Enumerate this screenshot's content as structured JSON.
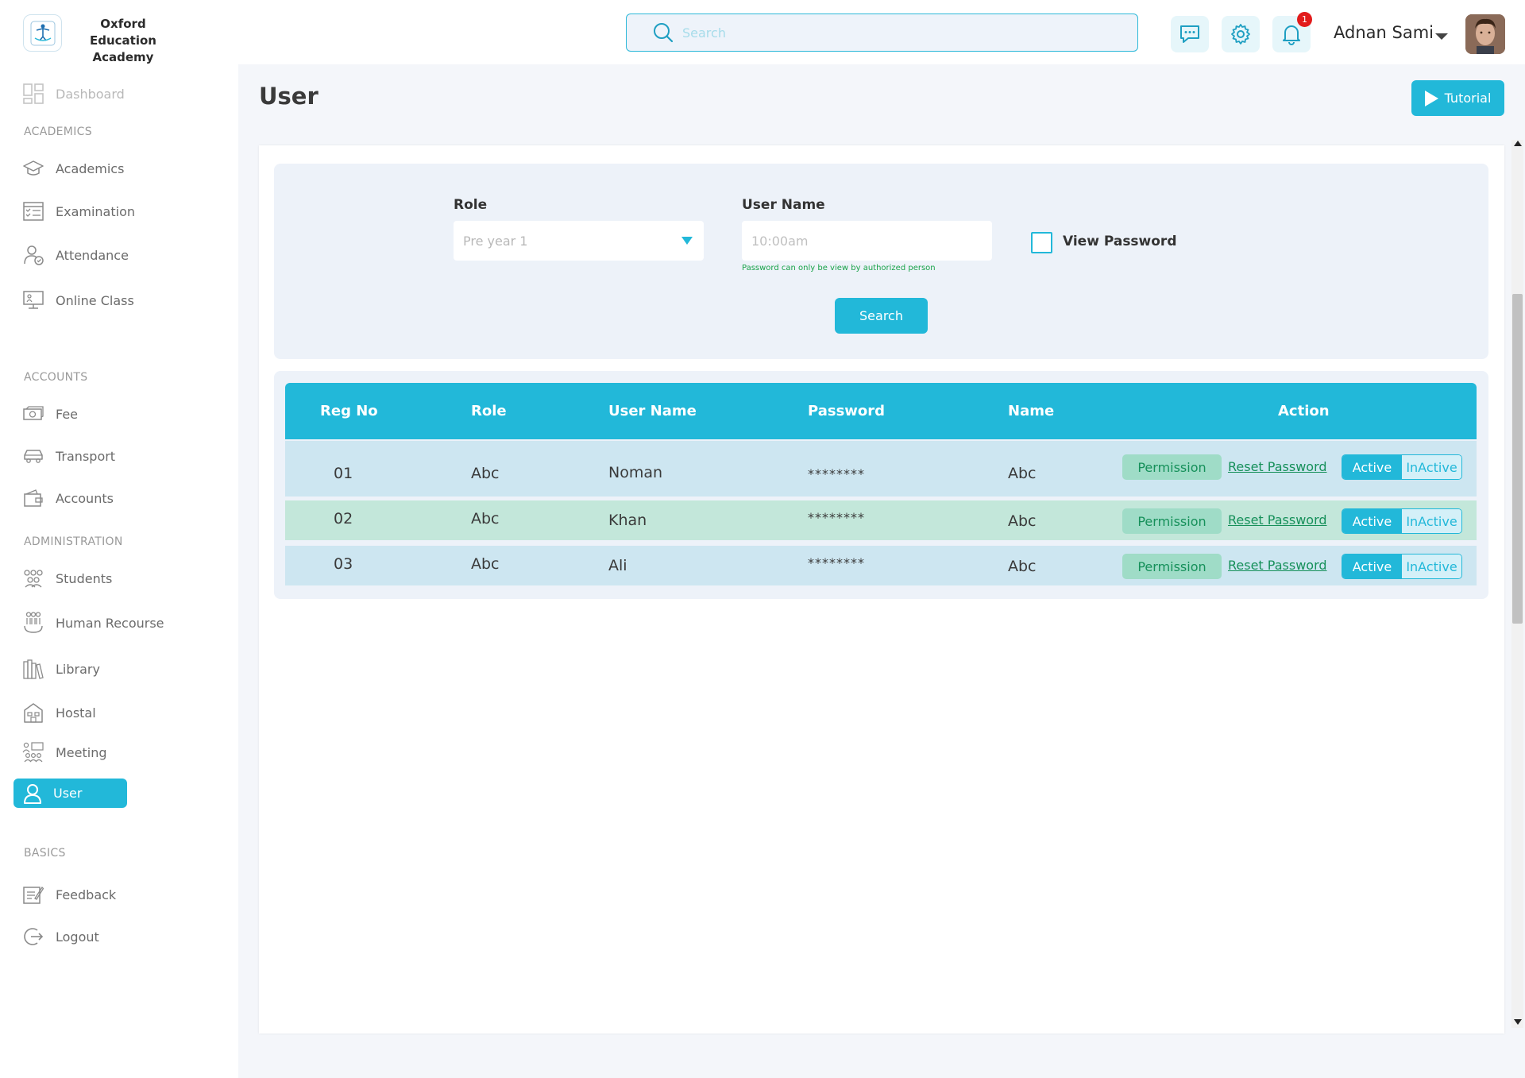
{
  "brand": {
    "name": "Oxford Education Academy"
  },
  "header": {
    "search_placeholder": "Search",
    "notification_count": "1",
    "user_name": "Adnan Sami",
    "icons": [
      "chat-icon",
      "gear-icon",
      "bell-icon"
    ]
  },
  "sidebar": {
    "dashboard": "Dashboard",
    "sections": {
      "academics": "ACADEMICS",
      "accounts": "ACCOUNTS",
      "administration": "ADMINISTRATION",
      "basics": "BASICS"
    },
    "items": {
      "academics": "Academics",
      "examination": "Examination",
      "attendance": "Attendance",
      "online_class": "Online Class",
      "fee": "Fee",
      "transport": "Transport",
      "accounts": "Accounts",
      "students": "Students",
      "human_resource": "Human Recourse",
      "library": "Library",
      "hostal": "Hostal",
      "meeting": "Meeting",
      "user": "User",
      "feedback": "Feedback",
      "logout": "Logout"
    },
    "active_item": "User"
  },
  "main": {
    "title": "User",
    "tutorial_label": "Tutorial",
    "filters": {
      "role_label": "Role",
      "role_value": "Pre year 1",
      "username_label": "User Name",
      "username_placeholder": "10:00am",
      "username_hint": "Password can only be view by authorized person",
      "view_password_label": "View Password",
      "view_password_checked": false,
      "search_label": "Search"
    },
    "table": {
      "columns": [
        "Reg No",
        "Role",
        "User Name",
        "Password",
        "Name",
        "Action"
      ],
      "rows": [
        {
          "reg_no": "01",
          "role": "Abc",
          "user_name": "Noman",
          "password": "********",
          "name": "Abc"
        },
        {
          "reg_no": "02",
          "role": "Abc",
          "user_name": "Khan",
          "password": "********",
          "name": "Abc"
        },
        {
          "reg_no": "03",
          "role": "Abc",
          "user_name": "Ali",
          "password": "********",
          "name": "Abc"
        }
      ],
      "actions": {
        "permission": "Permission",
        "reset_password": "Reset Password",
        "active": "Active",
        "inactive": "InActive"
      }
    }
  },
  "colors": {
    "accent": "#22b8d9",
    "row_blue": "#cde6f1",
    "row_green": "#c3e7da",
    "success_text": "#16905a",
    "badge": "#e21b1b"
  }
}
